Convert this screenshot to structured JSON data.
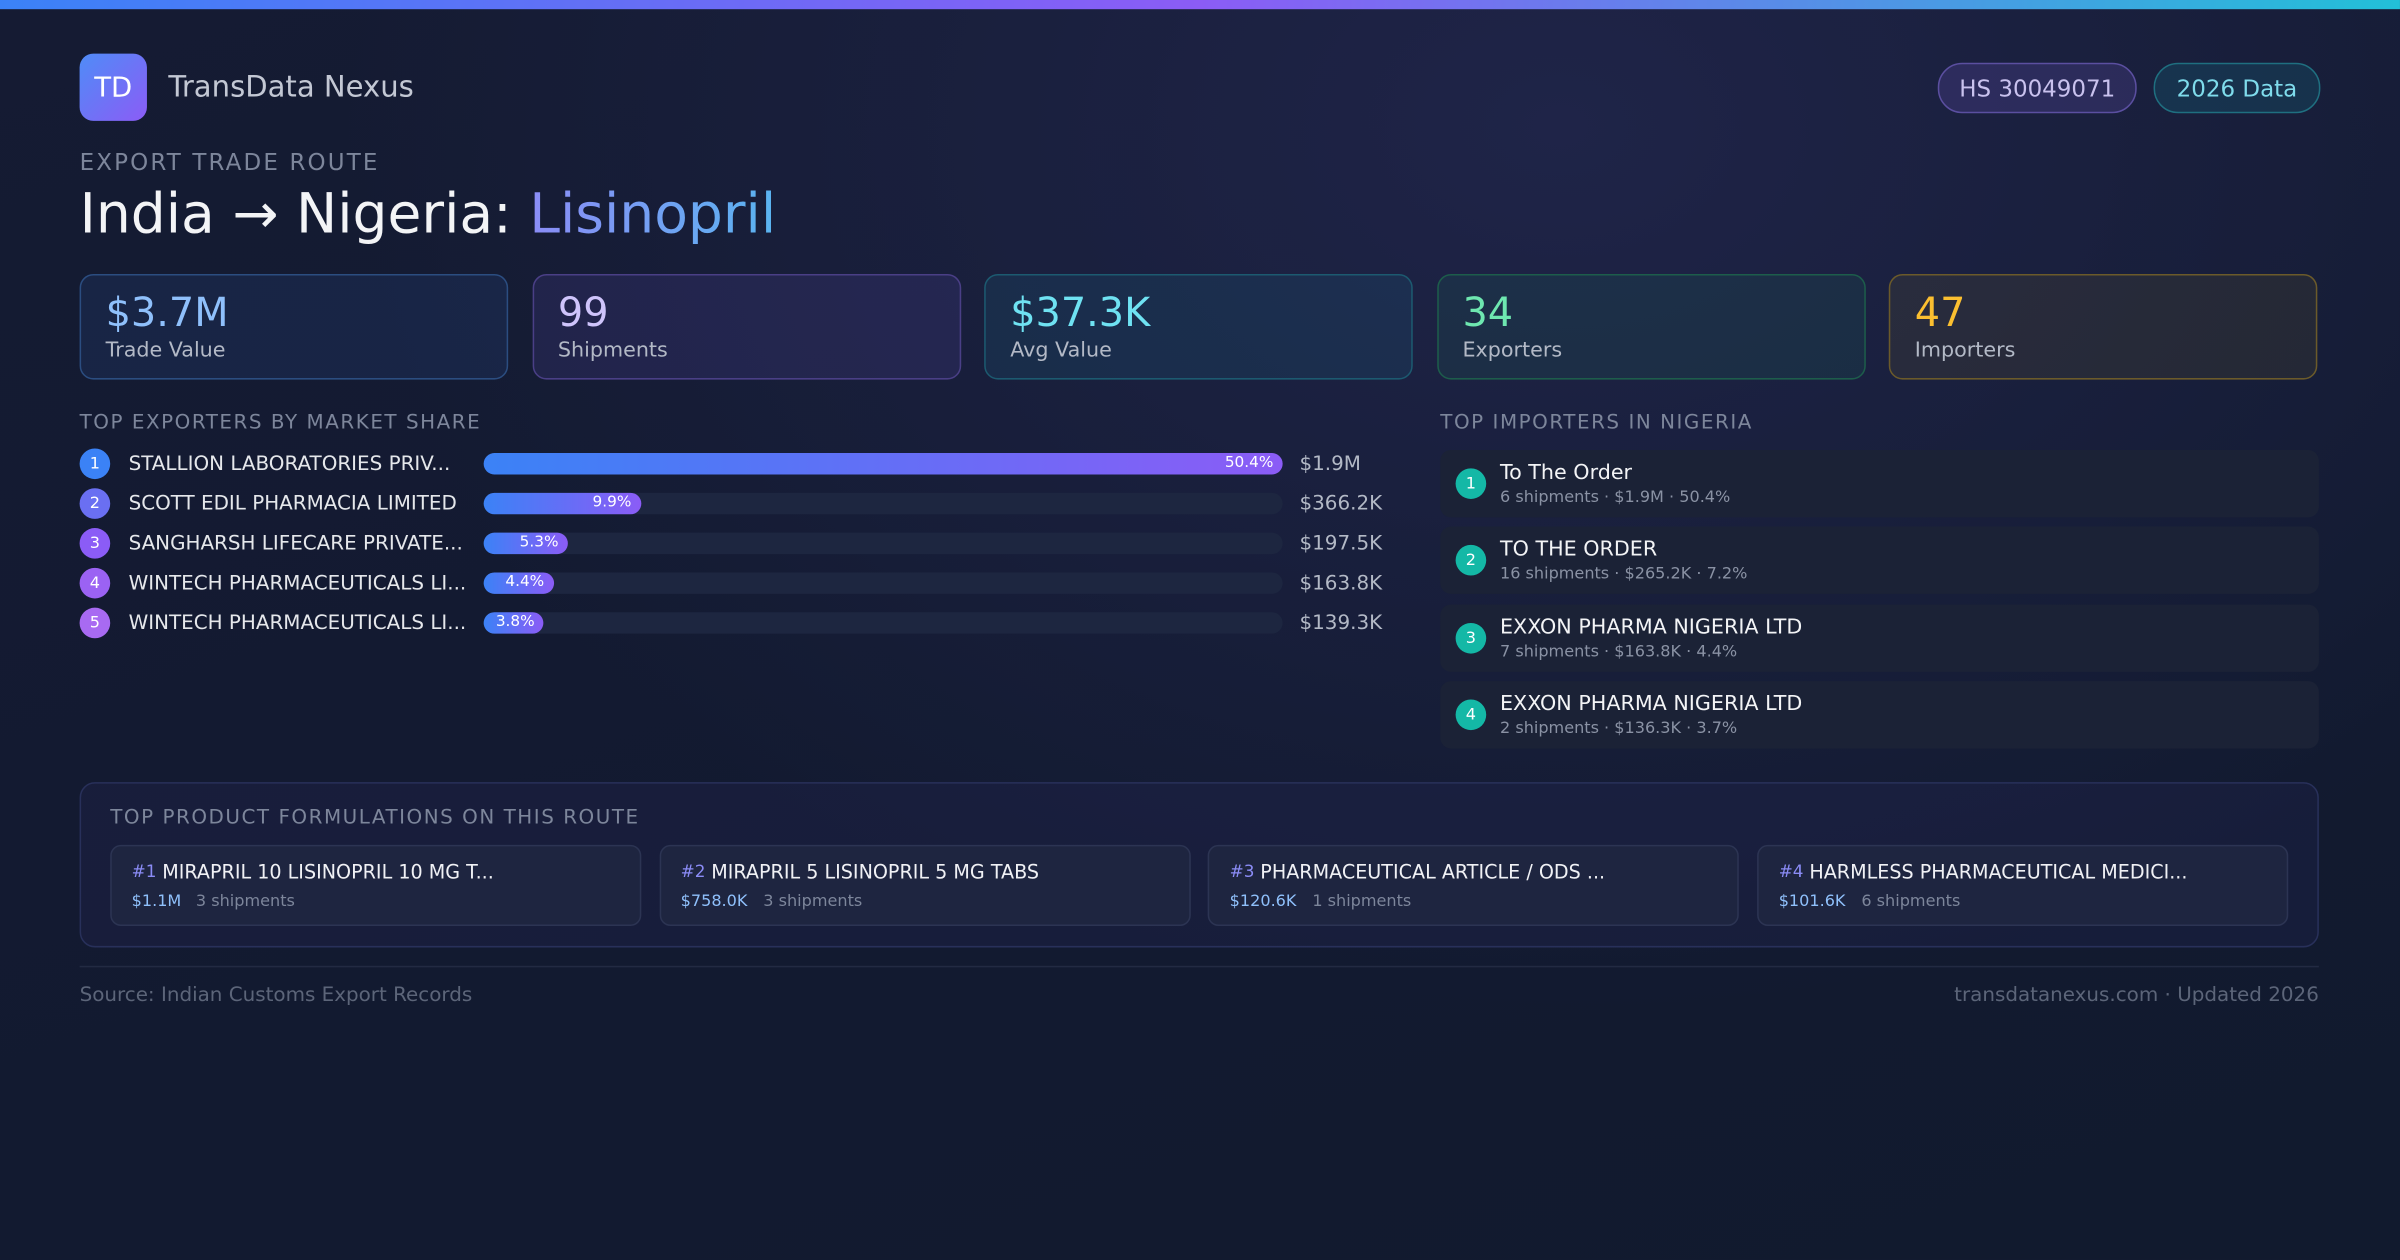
{
  "header": {
    "logo": "TD",
    "brand": "TransData Nexus",
    "badges": [
      "HS 30049071",
      "2026 Data"
    ]
  },
  "eyebrow": "EXPORT TRADE ROUTE",
  "title": {
    "route": "India → Nigeria:",
    "product": "Lisinopril"
  },
  "stats": [
    {
      "value": "$3.7M",
      "label": "Trade Value"
    },
    {
      "value": "99",
      "label": "Shipments"
    },
    {
      "value": "$37.3K",
      "label": "Avg Value"
    },
    {
      "value": "34",
      "label": "Exporters"
    },
    {
      "value": "47",
      "label": "Importers"
    }
  ],
  "exporters": {
    "title": "TOP EXPORTERS BY MARKET SHARE",
    "rows": [
      {
        "rank": 1,
        "name": "STALLION LABORATORIES PRIV...",
        "share": 50.4,
        "share_label": "50.4%",
        "value": "$1.9M"
      },
      {
        "rank": 2,
        "name": "SCOTT EDIL PHARMACIA LIMITED",
        "share": 9.9,
        "share_label": "9.9%",
        "value": "$366.2K"
      },
      {
        "rank": 3,
        "name": "SANGHARSH LIFECARE PRIVATE...",
        "share": 5.3,
        "share_label": "5.3%",
        "value": "$197.5K"
      },
      {
        "rank": 4,
        "name": "WINTECH PHARMACEUTICALS LI...",
        "share": 4.4,
        "share_label": "4.4%",
        "value": "$163.8K"
      },
      {
        "rank": 5,
        "name": "WINTECH PHARMACEUTICALS LI...",
        "share": 3.8,
        "share_label": "3.8%",
        "value": "$139.3K"
      }
    ]
  },
  "importers": {
    "title": "TOP IMPORTERS IN NIGERIA",
    "rows": [
      {
        "rank": 1,
        "name": "To The Order",
        "detail": "6 shipments · $1.9M · 50.4%"
      },
      {
        "rank": 2,
        "name": "TO THE ORDER",
        "detail": "16 shipments · $265.2K · 7.2%"
      },
      {
        "rank": 3,
        "name": "EXXON PHARMA NIGERIA LTD",
        "detail": "7 shipments · $163.8K · 4.4%"
      },
      {
        "rank": 4,
        "name": "EXXON PHARMA NIGERIA LTD",
        "detail": "2 shipments · $136.3K · 3.7%"
      }
    ]
  },
  "products": {
    "title": "TOP PRODUCT FORMULATIONS ON THIS ROUTE",
    "items": [
      {
        "rank": "#1",
        "name": "MIRAPRIL 10 LISINOPRIL 10 MG T...",
        "value": "$1.1M",
        "shipments": "3 shipments"
      },
      {
        "rank": "#2",
        "name": "MIRAPRIL 5 LISINOPRIL 5 MG TABS",
        "value": "$758.0K",
        "shipments": "3 shipments"
      },
      {
        "rank": "#3",
        "name": "PHARMACEUTICAL ARTICLE / ODS ...",
        "value": "$120.6K",
        "shipments": "1 shipments"
      },
      {
        "rank": "#4",
        "name": "HARMLESS PHARMACEUTICAL MEDICI...",
        "value": "$101.6K",
        "shipments": "6 shipments"
      }
    ]
  },
  "footer": {
    "source": "Source: Indian Customs Export Records",
    "site": "transdatanexus.com · Updated 2026"
  }
}
